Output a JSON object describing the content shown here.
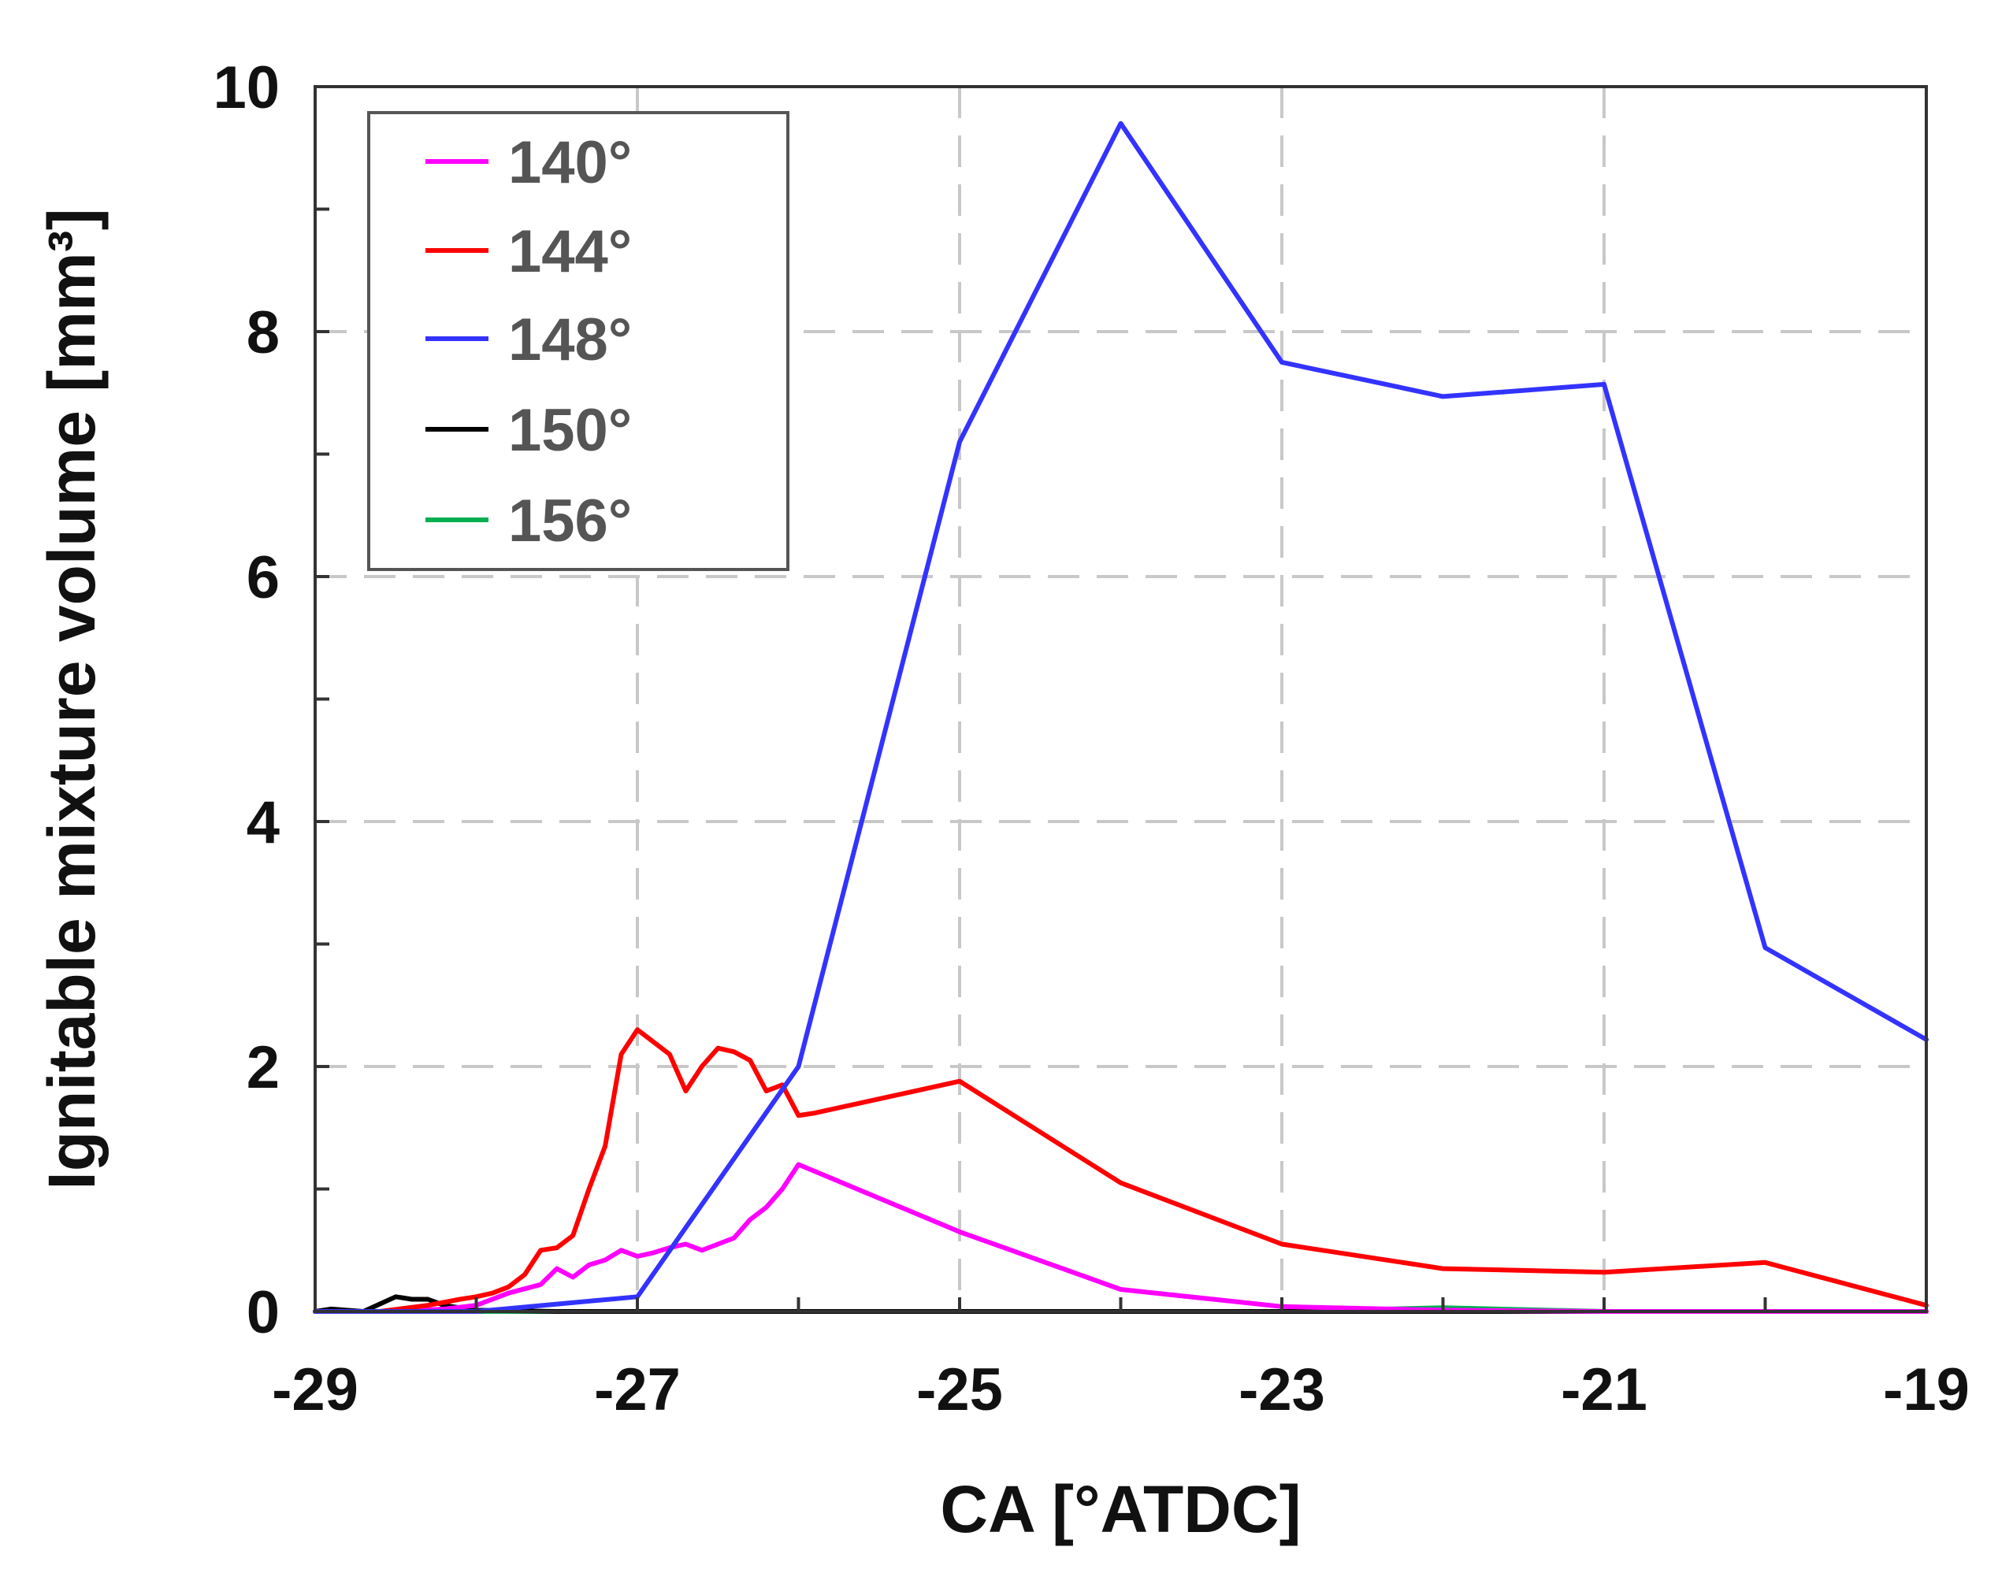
{
  "chart_data": {
    "type": "line",
    "xlabel": "CA [°ATDC]",
    "ylabel": "Ignitable mixture volume [mm³]",
    "xlim": [
      -29,
      -19
    ],
    "ylim": [
      0,
      10
    ],
    "xticks": [
      "-29",
      "-27",
      "-25",
      "-23",
      "-21",
      "-19"
    ],
    "yticks": [
      "0",
      "2",
      "4",
      "6",
      "8",
      "10"
    ],
    "grid": true,
    "legend_position": "top-left",
    "series": [
      {
        "name": "140°",
        "color": "#ff00ff",
        "x": [
          -29,
          -28.5,
          -28.2,
          -28.0,
          -27.8,
          -27.6,
          -27.5,
          -27.4,
          -27.3,
          -27.2,
          -27.1,
          -27.0,
          -26.9,
          -26.8,
          -26.7,
          -26.6,
          -26.5,
          -26.4,
          -26.3,
          -26.2,
          -26.1,
          -26.0,
          -25.0,
          -24.0,
          -23.0,
          -22.0,
          -21.0,
          -20.0,
          -19.0
        ],
        "y": [
          0,
          0,
          0.02,
          0.05,
          0.15,
          0.22,
          0.35,
          0.28,
          0.38,
          0.42,
          0.5,
          0.45,
          0.48,
          0.52,
          0.55,
          0.5,
          0.55,
          0.6,
          0.75,
          0.85,
          1.0,
          1.2,
          0.65,
          0.18,
          0.04,
          0.01,
          0,
          0,
          0
        ]
      },
      {
        "name": "144°",
        "color": "#ff0000",
        "x": [
          -29,
          -28.6,
          -28.3,
          -28.1,
          -28.0,
          -27.9,
          -27.8,
          -27.7,
          -27.6,
          -27.5,
          -27.4,
          -27.3,
          -27.2,
          -27.1,
          -27.0,
          -26.9,
          -26.8,
          -26.7,
          -26.6,
          -26.5,
          -26.4,
          -26.3,
          -26.2,
          -26.1,
          -26.0,
          -25.9,
          -25.0,
          -24.0,
          -23.0,
          -22.0,
          -21.0,
          -20.0,
          -19.0
        ],
        "y": [
          0,
          0,
          0.05,
          0.1,
          0.12,
          0.15,
          0.2,
          0.3,
          0.5,
          0.52,
          0.62,
          1.0,
          1.35,
          2.1,
          2.3,
          2.2,
          2.1,
          1.8,
          2.0,
          2.15,
          2.12,
          2.05,
          1.8,
          1.85,
          1.6,
          1.62,
          1.88,
          1.05,
          0.55,
          0.35,
          0.32,
          0.4,
          0.05
        ]
      },
      {
        "name": "148°",
        "color": "#3333ff",
        "x": [
          -29,
          -28,
          -27,
          -26,
          -25,
          -24,
          -23,
          -22,
          -21,
          -20,
          -19
        ],
        "y": [
          0,
          0,
          0.12,
          2.0,
          7.1,
          9.7,
          7.75,
          7.47,
          7.57,
          2.97,
          2.22
        ]
      },
      {
        "name": "150°",
        "color": "#000000",
        "x": [
          -29,
          -28.9,
          -28.7,
          -28.5,
          -28.4,
          -28.3,
          -28.2,
          -28.1,
          -28.0,
          -27.5,
          -19.0
        ],
        "y": [
          0,
          0.02,
          0,
          0.12,
          0.1,
          0.1,
          0.05,
          0.03,
          0.01,
          0,
          0
        ]
      },
      {
        "name": "156°",
        "color": "#00b050",
        "x": [
          -29,
          -23,
          -22,
          -21,
          -19
        ],
        "y": [
          0,
          0,
          0.03,
          0,
          0
        ]
      }
    ]
  }
}
